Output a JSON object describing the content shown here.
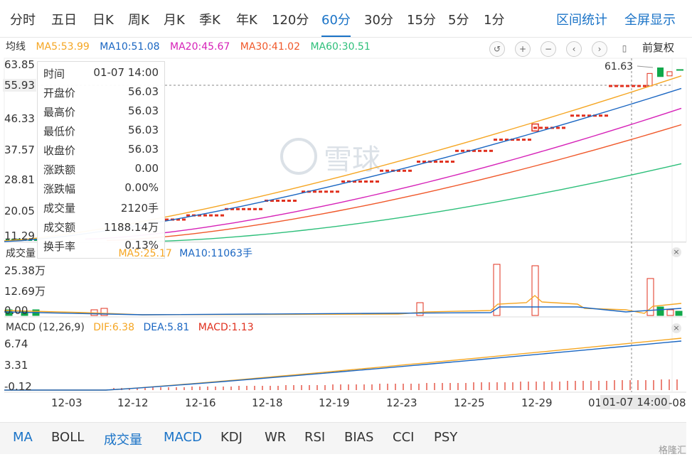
{
  "period_tabs": [
    "分时",
    "五日",
    "日K",
    "周K",
    "月K",
    "季K",
    "年K",
    "120分",
    "60分",
    "30分",
    "15分",
    "5分",
    "1分"
  ],
  "active_period": "60分",
  "right_links": {
    "range_stats": "区间统计",
    "fullscreen": "全屏显示"
  },
  "ma_legend": {
    "label": "均线",
    "ma5": "MA5:53.99",
    "ma10": "MA10:51.08",
    "ma20": "MA20:45.67",
    "ma30": "MA30:41.02",
    "ma60": "MA60:30.51"
  },
  "adjust_label": "前复权",
  "price_axis": [
    "63.85",
    "55.93",
    "46.33",
    "37.57",
    "28.81",
    "20.05",
    "11.29"
  ],
  "price_high_marker": "61.63",
  "tooltip": [
    {
      "k": "时间",
      "v": "01-07 14:00"
    },
    {
      "k": "开盘价",
      "v": "56.03"
    },
    {
      "k": "最高价",
      "v": "56.03"
    },
    {
      "k": "最低价",
      "v": "56.03"
    },
    {
      "k": "收盘价",
      "v": "56.03"
    },
    {
      "k": "涨跌额",
      "v": "0.00"
    },
    {
      "k": "涨跌幅",
      "v": "0.00%"
    },
    {
      "k": "成交量",
      "v": "2120手"
    },
    {
      "k": "成交额",
      "v": "1188.14万"
    },
    {
      "k": "换手率",
      "v": "0.13%"
    }
  ],
  "volume_legend": {
    "label": "成交量",
    "ma5": "MA5:25.17",
    "ma10": "MA10:11063手"
  },
  "volume_axis": [
    "25.38万",
    "12.69万",
    "0.00"
  ],
  "macd_legend": {
    "label": "MACD (12,26,9)",
    "dif": "DIF:6.38",
    "dea": "DEA:5.81",
    "macd": "MACD:1.13"
  },
  "macd_axis": [
    "6.74",
    "3.31",
    "-0.12"
  ],
  "x_axis": [
    "12-03",
    "12-12",
    "12-16",
    "12-18",
    "12-19",
    "12-23",
    "12-25",
    "12-29",
    "01"
  ],
  "x_selected": "01-07 14:00",
  "x_tail": "-08",
  "indicator_tabs": [
    "MA",
    "BOLL",
    "成交量",
    "MACD",
    "KDJ",
    "WR",
    "RSI",
    "BIAS",
    "CCI",
    "PSY"
  ],
  "watermark": "雪球",
  "brand": "格隆汇",
  "colors": {
    "ma5": "#f5a623",
    "ma10": "#1a66c2",
    "ma20": "#d622b8",
    "ma30": "#f0582a",
    "ma60": "#2dbf7a",
    "up": "#e0301e",
    "down": "#10a84a",
    "accent": "#1a73c7"
  }
}
